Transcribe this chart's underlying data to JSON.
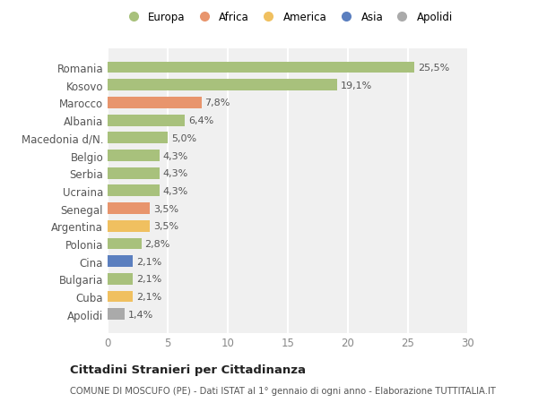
{
  "categories": [
    "Romania",
    "Kosovo",
    "Marocco",
    "Albania",
    "Macedonia d/N.",
    "Belgio",
    "Serbia",
    "Ucraina",
    "Senegal",
    "Argentina",
    "Polonia",
    "Cina",
    "Bulgaria",
    "Cuba",
    "Apolidi"
  ],
  "values": [
    25.5,
    19.1,
    7.8,
    6.4,
    5.0,
    4.3,
    4.3,
    4.3,
    3.5,
    3.5,
    2.8,
    2.1,
    2.1,
    2.1,
    1.4
  ],
  "labels": [
    "25,5%",
    "19,1%",
    "7,8%",
    "6,4%",
    "5,0%",
    "4,3%",
    "4,3%",
    "4,3%",
    "3,5%",
    "3,5%",
    "2,8%",
    "2,1%",
    "2,1%",
    "2,1%",
    "1,4%"
  ],
  "colors": [
    "#a8c17c",
    "#a8c17c",
    "#e8956d",
    "#a8c17c",
    "#a8c17c",
    "#a8c17c",
    "#a8c17c",
    "#a8c17c",
    "#e8956d",
    "#f0c060",
    "#a8c17c",
    "#5b7fbf",
    "#a8c17c",
    "#f0c060",
    "#aaaaaa"
  ],
  "legend_labels": [
    "Europa",
    "Africa",
    "America",
    "Asia",
    "Apolidi"
  ],
  "legend_colors": [
    "#a8c17c",
    "#e8956d",
    "#f0c060",
    "#5b7fbf",
    "#aaaaaa"
  ],
  "title": "Cittadini Stranieri per Cittadinanza",
  "subtitle": "COMUNE DI MOSCUFO (PE) - Dati ISTAT al 1° gennaio di ogni anno - Elaborazione TUTTITALIA.IT",
  "xlim": [
    0,
    30
  ],
  "xticks": [
    0,
    5,
    10,
    15,
    20,
    25,
    30
  ],
  "background_color": "#ffffff",
  "plot_background": "#f0f0f0",
  "grid_color": "#ffffff"
}
